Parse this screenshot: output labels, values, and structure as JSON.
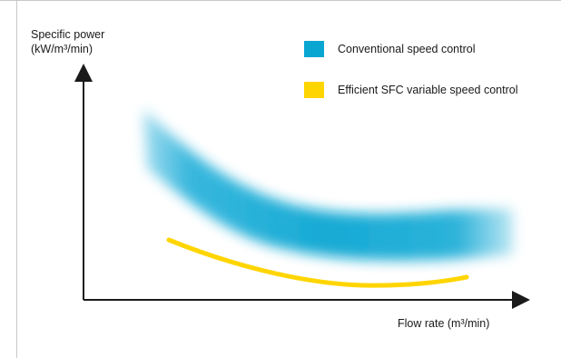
{
  "chart_data": {
    "type": "area",
    "title": "",
    "ylabel_line1": "Specific power",
    "ylabel_line2": "(kW/m³/min)",
    "xlabel": "Flow rate (m³/min)",
    "grid": false,
    "legend_position": "top-right",
    "ticks": "none",
    "series": [
      {
        "name": "Conventional speed control",
        "color": "#0aa6d2",
        "style": "blurred-band",
        "description_x": [
          0.05,
          0.15,
          0.25,
          0.35,
          0.45,
          0.55,
          0.65,
          0.75,
          0.85,
          0.95
        ],
        "center_y": [
          0.88,
          0.75,
          0.64,
          0.56,
          0.5,
          0.46,
          0.43,
          0.41,
          0.4,
          0.4
        ],
        "band_width": 0.18
      },
      {
        "name": "Efficient SFC variable speed control",
        "color": "#ffd500",
        "style": "line",
        "x": [
          0.0,
          0.1,
          0.2,
          0.3,
          0.4,
          0.5,
          0.6,
          0.7,
          0.8,
          0.9,
          1.0
        ],
        "y": [
          0.5,
          0.43,
          0.37,
          0.33,
          0.3,
          0.28,
          0.27,
          0.27,
          0.275,
          0.285,
          0.3
        ]
      }
    ]
  },
  "legend": [
    {
      "label": "Conventional speed control",
      "color": "#0aa6d2"
    },
    {
      "label": "Efficient SFC variable speed control",
      "color": "#ffd500"
    }
  ]
}
